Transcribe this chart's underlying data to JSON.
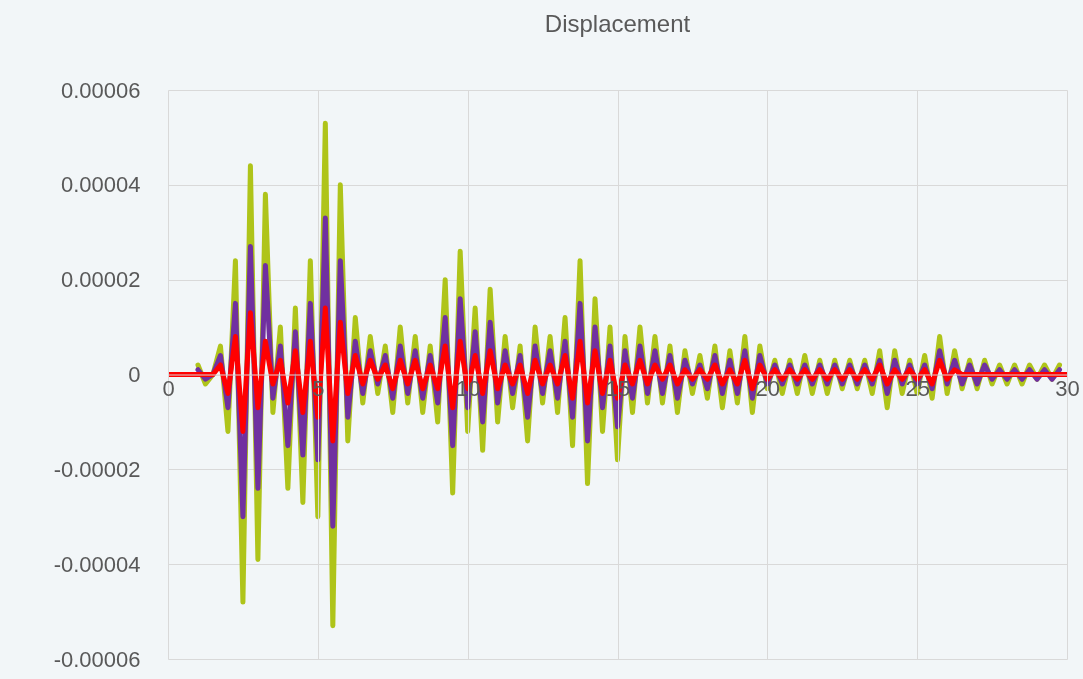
{
  "chart_data": {
    "type": "line",
    "title": "Displacement",
    "x": [
      0,
      0.25,
      0.5,
      0.75,
      1,
      1.25,
      1.5,
      1.75,
      2,
      2.25,
      2.5,
      2.75,
      3,
      3.25,
      3.5,
      3.75,
      4,
      4.25,
      4.5,
      4.75,
      5,
      5.25,
      5.5,
      5.75,
      6,
      6.25,
      6.5,
      6.75,
      7,
      7.25,
      7.5,
      7.75,
      8,
      8.25,
      8.5,
      8.75,
      9,
      9.25,
      9.5,
      9.75,
      10,
      10.25,
      10.5,
      10.75,
      11,
      11.25,
      11.5,
      11.75,
      12,
      12.25,
      12.5,
      12.75,
      13,
      13.25,
      13.5,
      13.75,
      14,
      14.25,
      14.5,
      14.75,
      15,
      15.25,
      15.5,
      15.75,
      16,
      16.25,
      16.5,
      16.75,
      17,
      17.25,
      17.5,
      17.75,
      18,
      18.25,
      18.5,
      18.75,
      19,
      19.25,
      19.5,
      19.75,
      20,
      20.25,
      20.5,
      20.75,
      21,
      21.25,
      21.5,
      21.75,
      22,
      22.25,
      22.5,
      22.75,
      23,
      23.25,
      23.5,
      23.75,
      24,
      24.25,
      24.5,
      24.75,
      25,
      25.25,
      25.5,
      25.75,
      26,
      26.25,
      26.5,
      26.75,
      27,
      27.25,
      27.5,
      27.75,
      28,
      28.25,
      28.5,
      28.75,
      29,
      29.25,
      29.5,
      29.75,
      30
    ],
    "series": [
      {
        "color": "#afc41a",
        "values": [
          null,
          null,
          null,
          null,
          2e-06,
          -2e-06,
          0,
          6e-06,
          -1.2e-05,
          2.4e-05,
          -4.8e-05,
          4.4e-05,
          -3.9e-05,
          3.8e-05,
          -8e-06,
          1e-05,
          -2.4e-05,
          1.4e-05,
          -2.7e-05,
          2.4e-05,
          -3e-05,
          5.3e-05,
          -5.3e-05,
          4e-05,
          -1.4e-05,
          1.2e-05,
          -6e-06,
          8e-06,
          -4e-06,
          6e-06,
          -8e-06,
          1e-05,
          -6e-06,
          8e-06,
          -8e-06,
          6e-06,
          -1e-05,
          2e-05,
          -2.5e-05,
          2.6e-05,
          -1.2e-05,
          1.4e-05,
          -1.6e-05,
          1.8e-05,
          -1e-05,
          8e-06,
          -7e-06,
          6e-06,
          -1.4e-05,
          1e-05,
          -6e-06,
          8e-06,
          -8e-06,
          1.2e-05,
          -1.5e-05,
          2.4e-05,
          -2.3e-05,
          1.6e-05,
          -1.2e-05,
          1e-05,
          -1.8e-05,
          8e-06,
          -8e-06,
          1e-05,
          -6e-06,
          8e-06,
          -6e-06,
          6e-06,
          -8e-06,
          5e-06,
          -4e-06,
          4e-06,
          -5e-06,
          6e-06,
          -7e-06,
          5e-06,
          -6e-06,
          8e-06,
          -8e-06,
          6e-06,
          -3e-06,
          3e-06,
          -4e-06,
          3e-06,
          -4e-06,
          4e-06,
          -4e-06,
          3e-06,
          -4e-06,
          3e-06,
          -3e-06,
          3e-06,
          -3e-06,
          3e-06,
          -4e-06,
          5e-06,
          -7e-06,
          5e-06,
          -4e-06,
          3e-06,
          -4e-06,
          4e-06,
          -5e-06,
          8e-06,
          -4e-06,
          5e-06,
          -3e-06,
          3e-06,
          -3e-06,
          3e-06,
          -2e-06,
          2e-06,
          -2e-06,
          2e-06,
          -2e-06,
          2e-06,
          -1e-06,
          2e-06,
          -1e-06,
          2e-06,
          null
        ]
      },
      {
        "color": "#7030a0",
        "values": [
          null,
          null,
          null,
          null,
          1e-06,
          -1e-06,
          0,
          4e-06,
          -7e-06,
          1.5e-05,
          -3e-05,
          2.7e-05,
          -2.4e-05,
          2.3e-05,
          -5e-06,
          6e-06,
          -1.5e-05,
          9e-06,
          -1.7e-05,
          1.5e-05,
          -1.8e-05,
          3.3e-05,
          -3.2e-05,
          2.4e-05,
          -9e-06,
          7e-06,
          -4e-06,
          5e-06,
          -2e-06,
          4e-06,
          -5e-06,
          6e-06,
          -4e-06,
          5e-06,
          -5e-06,
          4e-06,
          -6e-06,
          1.2e-05,
          -1.5e-05,
          1.6e-05,
          -7e-06,
          9e-06,
          -1e-05,
          1.1e-05,
          -6e-06,
          5e-06,
          -4e-06,
          4e-06,
          -9e-06,
          6e-06,
          -4e-06,
          5e-06,
          -5e-06,
          7e-06,
          -9e-06,
          1.5e-05,
          -1.4e-05,
          1e-05,
          -7e-06,
          6e-06,
          -1.1e-05,
          5e-06,
          -5e-06,
          6e-06,
          -4e-06,
          5e-06,
          -4e-06,
          4e-06,
          -5e-06,
          3e-06,
          -2e-06,
          2e-06,
          -3e-06,
          4e-06,
          -4e-06,
          3e-06,
          -4e-06,
          5e-06,
          -5e-06,
          4e-06,
          -2e-06,
          2e-06,
          -2e-06,
          2e-06,
          -2e-06,
          2e-06,
          -2e-06,
          2e-06,
          -2e-06,
          2e-06,
          -2e-06,
          2e-06,
          -2e-06,
          2e-06,
          -2e-06,
          3e-06,
          -4e-06,
          3e-06,
          -2e-06,
          2e-06,
          -2e-06,
          2e-06,
          -3e-06,
          5e-06,
          -2e-06,
          3e-06,
          -2e-06,
          2e-06,
          -2e-06,
          2e-06,
          -1e-06,
          1e-06,
          -1e-06,
          1e-06,
          -1e-06,
          1e-06,
          -1e-06,
          1e-06,
          -1e-06,
          1e-06,
          null
        ]
      },
      {
        "color": "#ff0000",
        "values": [
          0,
          0,
          0,
          0,
          0,
          0,
          0,
          2e-06,
          -4e-06,
          8e-06,
          -1.2e-05,
          1.3e-05,
          -7e-06,
          7e-06,
          -2e-06,
          3e-06,
          -6e-06,
          5e-06,
          -8e-06,
          7e-06,
          -9e-06,
          1.4e-05,
          -1.4e-05,
          1.1e-05,
          -4e-06,
          4e-06,
          -2e-06,
          3e-06,
          -1e-06,
          2e-06,
          -3e-06,
          3e-06,
          -2e-06,
          3e-06,
          -3e-06,
          2e-06,
          -3e-06,
          6e-06,
          -7e-06,
          7e-06,
          -3e-06,
          4e-06,
          -4e-06,
          5e-06,
          -3e-06,
          2e-06,
          -2e-06,
          2e-06,
          -4e-06,
          3e-06,
          -2e-06,
          2e-06,
          -2e-06,
          4e-06,
          -5e-06,
          7e-06,
          -6e-06,
          5e-06,
          -4e-06,
          3e-06,
          -5e-06,
          2e-06,
          -2e-06,
          3e-06,
          -2e-06,
          2e-06,
          -1e-06,
          2e-06,
          -2e-06,
          1e-06,
          -1e-06,
          1e-06,
          -1e-06,
          2e-06,
          -2e-06,
          1e-06,
          -2e-06,
          3e-06,
          -3e-06,
          2e-06,
          -1e-06,
          1e-06,
          -1e-06,
          1e-06,
          -1e-06,
          1e-06,
          -1e-06,
          1e-06,
          -1e-06,
          1e-06,
          -1e-06,
          1e-06,
          -1e-06,
          1e-06,
          -1e-06,
          2e-06,
          -2e-06,
          1e-06,
          -1e-06,
          1e-06,
          -1e-06,
          1e-06,
          -2e-06,
          3e-06,
          -1e-06,
          1e-06,
          0,
          0,
          0,
          0,
          0,
          0,
          0,
          0,
          0,
          0,
          0,
          0,
          0,
          0,
          0
        ]
      }
    ],
    "xlim": [
      0,
      30
    ],
    "xticks": [
      0,
      5,
      10,
      15,
      20,
      25,
      30
    ],
    "ylim": [
      -6e-05,
      6e-05
    ],
    "yticks": [
      {
        "value": -6e-05,
        "label": "-0.00006"
      },
      {
        "value": -4e-05,
        "label": "-0.00004"
      },
      {
        "value": -2e-05,
        "label": "-0.00002"
      },
      0,
      {
        "value": 2e-05,
        "label": "0.00002"
      },
      {
        "value": 4e-05,
        "label": "0.00004"
      },
      {
        "value": 6e-05,
        "label": "0.00006"
      }
    ],
    "grid": true
  }
}
